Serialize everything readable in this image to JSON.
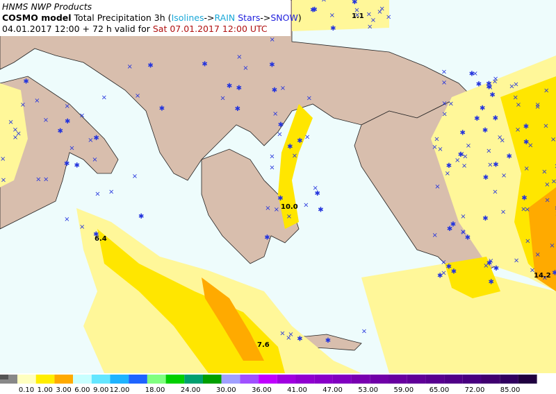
{
  "header": {
    "source": "HNMS NWP Products",
    "model": "COSMO model",
    "field": "Total Precipitation 3h",
    "paren_open": "(",
    "isolines": "Isolines",
    "arrow1": "->",
    "rain": "RAIN",
    "stars": "Stars",
    "arrow2": "->",
    "snow": "SNOW",
    "paren_close": ")",
    "run": "04.01.2017 12:00 + 72 h valid for",
    "valid": "Sat 07.01.2017 12:00 UTC"
  },
  "labels": [
    "1.1",
    "10.0",
    "6.4",
    "7.6",
    "14.2"
  ],
  "colorbar": {
    "labels": [
      "0.10",
      "1.00",
      "3.00",
      "6.00",
      "9.00",
      "12.00",
      "18.00",
      "24.00",
      "30.00",
      "36.00",
      "41.00",
      "47.00",
      "53.00",
      "59.00",
      "65.00",
      "72.00",
      "85.00"
    ],
    "colors": [
      "#ffffc0",
      "#ffee00",
      "#ffaa00",
      "#c8ffff",
      "#64e6ff",
      "#1eb4ff",
      "#1e64ff",
      "#80ff80",
      "#00d000",
      "#00a070",
      "#00a000",
      "#a0a0ff",
      "#a050ff",
      "#c000ff",
      "#a000e0",
      "#9000d0",
      "#8800c8",
      "#8000c0",
      "#7800b0",
      "#7000a8",
      "#6800a0",
      "#600098",
      "#580090",
      "#500088",
      "#480080",
      "#400070",
      "#300060",
      "#200040"
    ]
  }
}
